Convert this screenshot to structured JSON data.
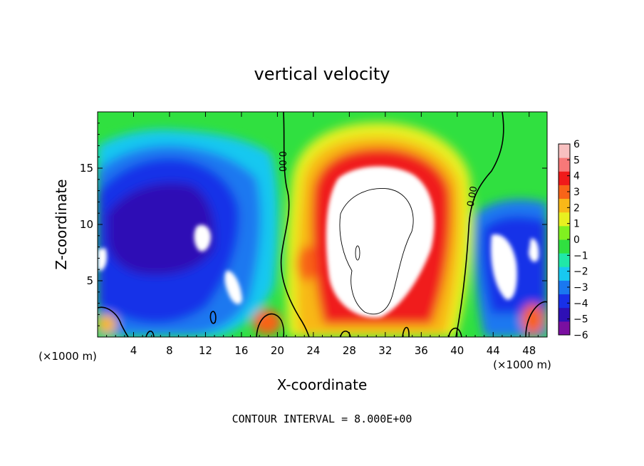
{
  "chart_data": {
    "type": "heatmap",
    "title": "vertical velocity",
    "xlabel": "X-coordinate",
    "ylabel": "Z-coordinate",
    "x_unit_left": "(×1000 m)",
    "x_unit_right": "(×1000 m)",
    "footer": "CONTOUR INTERVAL = 8.000E+00",
    "xlim": [
      0,
      50
    ],
    "ylim": [
      0,
      20
    ],
    "x_ticks": [
      {
        "value": 4,
        "label": "4"
      },
      {
        "value": 8,
        "label": "8"
      },
      {
        "value": 12,
        "label": "12"
      },
      {
        "value": 16,
        "label": "16"
      },
      {
        "value": 20,
        "label": "20"
      },
      {
        "value": 24,
        "label": "24"
      },
      {
        "value": 28,
        "label": "28"
      },
      {
        "value": 32,
        "label": "32"
      },
      {
        "value": 36,
        "label": "36"
      },
      {
        "value": 40,
        "label": "40"
      },
      {
        "value": 44,
        "label": "44"
      },
      {
        "value": 48,
        "label": "48"
      }
    ],
    "y_ticks": [
      {
        "value": 5,
        "label": "5"
      },
      {
        "value": 10,
        "label": "10"
      },
      {
        "value": 15,
        "label": "15"
      }
    ],
    "colorbar": {
      "min": -6,
      "max": 6,
      "labels": [
        "6",
        "5",
        "4",
        "3",
        "2",
        "1",
        "0",
        "−1",
        "−2",
        "−3",
        "−4",
        "−5",
        "−6"
      ],
      "colors": [
        "#7a0fa0",
        "#2e10b5",
        "#1830e8",
        "#1a78f0",
        "#18c8f0",
        "#20e8a8",
        "#30e040",
        "#80f020",
        "#e8f020",
        "#f8b818",
        "#f86418",
        "#f01a1a",
        "#f87878",
        "#f8c0c0"
      ]
    },
    "background_color": "#30e040",
    "out_of_range_color": "#ffffff",
    "contour_labels": [
      {
        "text": "0.00",
        "x": 20.6,
        "y": 15.6,
        "angle": 90
      },
      {
        "text": "0.00",
        "x": 41.6,
        "y": 12.5,
        "angle": -80
      }
    ]
  }
}
